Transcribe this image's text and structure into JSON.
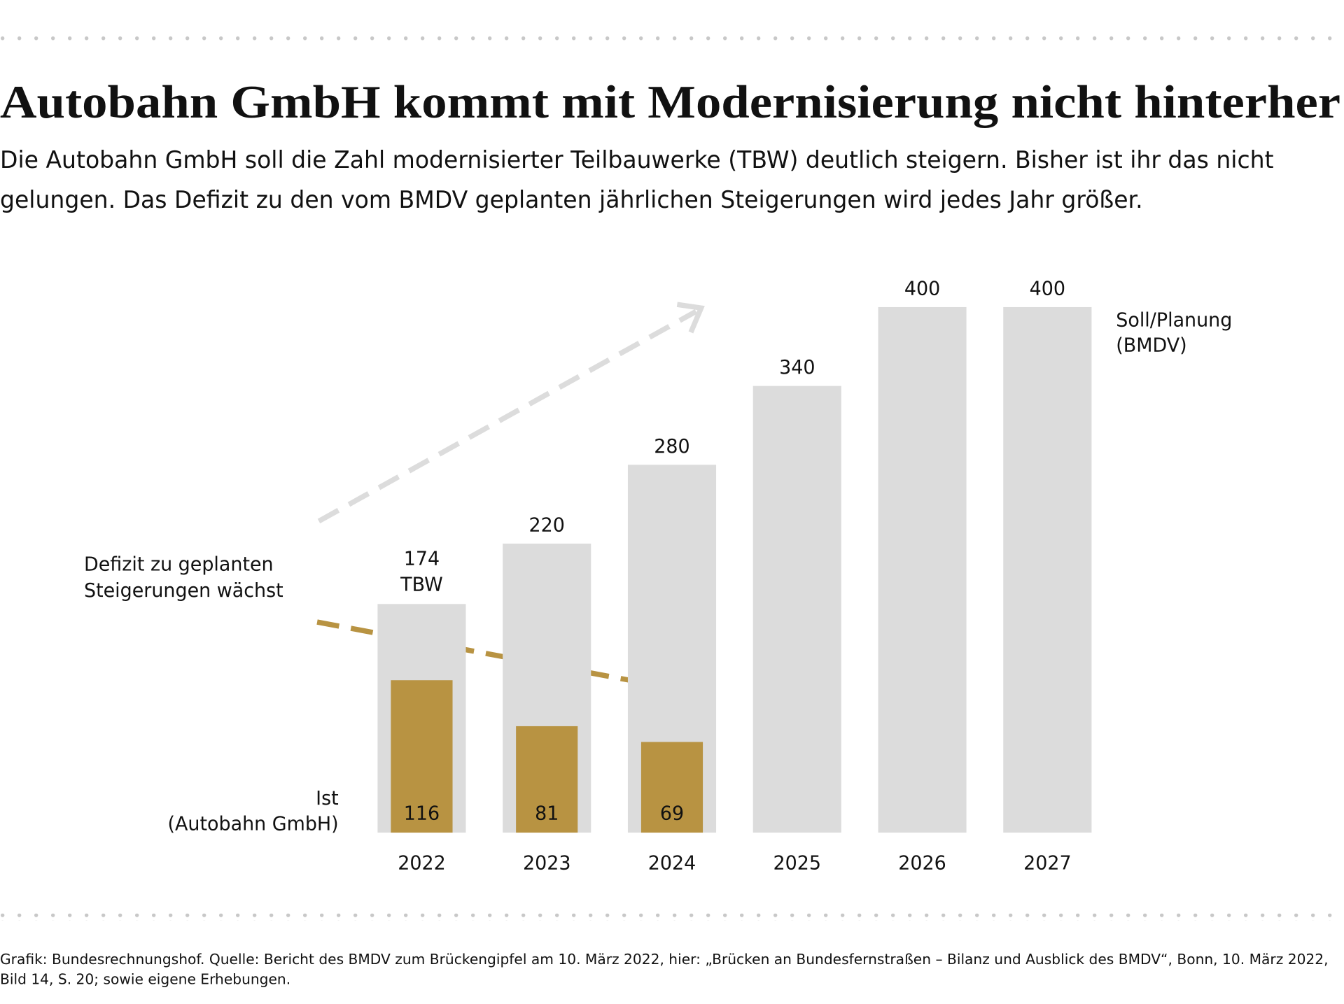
{
  "chart_data": {
    "type": "bar",
    "title": "Autobahn GmbH kommt mit Modernisierung nicht hinterher",
    "subtitle": "Die Autobahn GmbH soll die Zahl modernisierter Teilbauwerke (TBW) deutlich steigern. Bisher ist ihr das nicht gelungen. Das Defizit zu den vom BMDV geplanten jährlichen Steigerungen wird jedes Jahr größer.",
    "categories": [
      "2022",
      "2023",
      "2024",
      "2025",
      "2026",
      "2027"
    ],
    "series": [
      {
        "name": "Soll/Planung (BMDV)",
        "color": "#dcdcdc",
        "values": [
          174,
          220,
          280,
          340,
          400,
          400
        ]
      },
      {
        "name": "Ist (Autobahn GmbH)",
        "color": "#b89342",
        "values": [
          116,
          81,
          69,
          null,
          null,
          null
        ]
      }
    ],
    "unit_label": "TBW",
    "annotation": "Defizit zu geplanten Steigerungen wächst",
    "ylim": [
      0,
      400
    ],
    "source": "Grafik: Bundesrechnungshof. Quelle: Bericht des BMDV zum Brückengipfel am 10. März 2022, hier: „Brücken an Bundesfernstraßen – Bilanz und Ausblick des BMDV“, Bonn, 10. März 2022, Bild 14, S. 20; sowie eigene Erhebungen."
  }
}
